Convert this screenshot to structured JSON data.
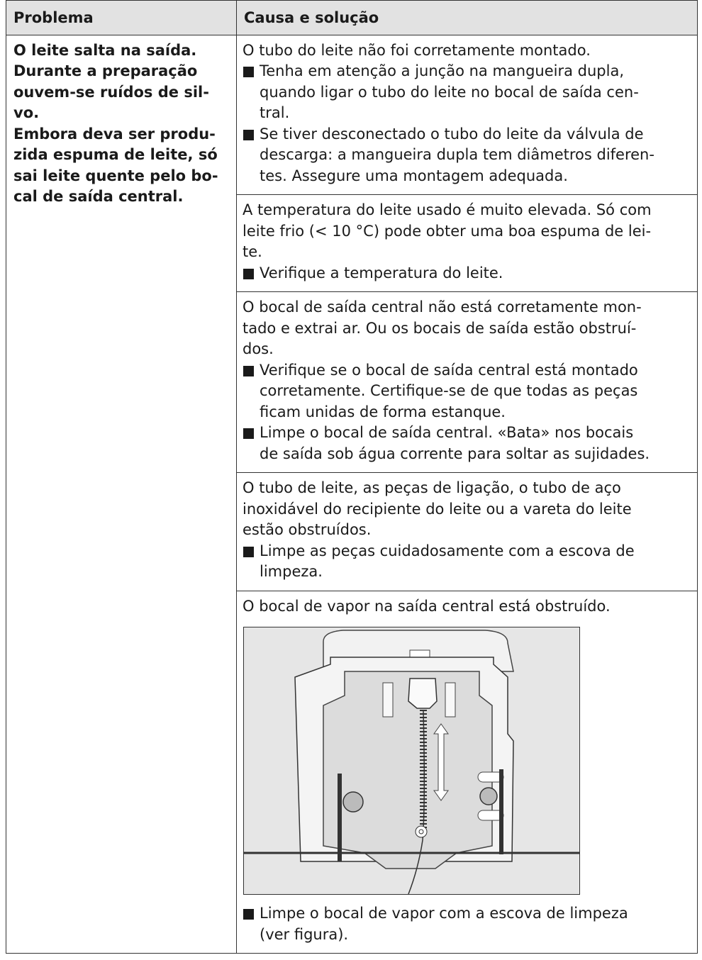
{
  "table": {
    "header": [
      "Problema",
      "Causa e solução"
    ],
    "problem": [
      "O leite salta na saída.",
      "Durante a preparação",
      "ouvem-se ruídos de sil-",
      "vo.",
      "Embora deva ser produ-",
      "zida espuma de leite, só",
      "sai leite quente pelo bo-",
      "cal de saída central."
    ],
    "causes": [
      {
        "text": [
          "O tubo do leite não foi corretamente montado."
        ],
        "bullets": [
          [
            "Tenha em atenção a junção na mangueira dupla,",
            "quando ligar o tubo do leite no bocal de saída cen-",
            "tral."
          ],
          [
            "Se tiver desconectado o tubo do leite da válvula de",
            "descarga: a mangueira dupla tem diâmetros diferen-",
            "tes. Assegure uma montagem adequada."
          ]
        ]
      },
      {
        "text": [
          "A temperatura do leite usado é muito elevada. Só com",
          "leite frio (< 10 °C) pode obter uma boa espuma de lei-",
          "te."
        ],
        "bullets": [
          [
            "Verifique a temperatura do leite."
          ]
        ]
      },
      {
        "text": [
          "O bocal de saída central não está corretamente mon-",
          "tado e extrai ar. Ou os bocais de saída estão obstruí-",
          "dos."
        ],
        "bullets": [
          [
            "Verifique se o bocal de saída central está montado",
            "corretamente. Certifique-se de que todas as peças",
            "ficam unidas de forma estanque."
          ],
          [
            "Limpe o bocal de saída central. «Bata» nos bocais",
            "de saída sob água corrente para soltar as sujidades."
          ]
        ]
      },
      {
        "text": [
          "O tubo de leite, as peças de ligação, o tubo de aço",
          "inoxidável do recipiente do leite ou a vareta do leite",
          "estão obstruídos."
        ],
        "bullets": [
          [
            "Limpe as peças cuidadosamente com a escova de",
            "limpeza."
          ]
        ]
      },
      {
        "text": [
          "O bocal de vapor na saída central está obstruído."
        ],
        "figure": true,
        "bullets": [
          [
            "Limpe o bocal de vapor com a escova de limpeza",
            "(ver figura)."
          ]
        ]
      }
    ]
  }
}
